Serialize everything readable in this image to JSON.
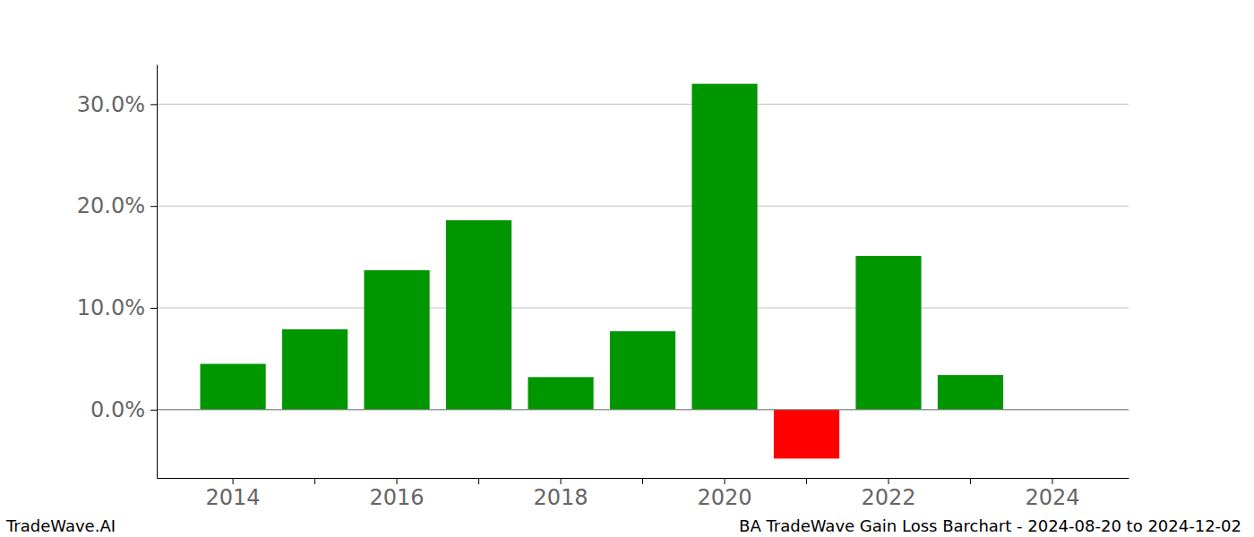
{
  "chart_data": {
    "type": "bar",
    "title": "BA TradeWave Gain Loss Barchart - 2024-08-20 to 2024-12-02",
    "annotations": [
      "TradeWave.AI"
    ],
    "categories": [
      "2014",
      null,
      "2016",
      null,
      "2018",
      null,
      "2020",
      null,
      "2022",
      null,
      "2024"
    ],
    "values": [
      4.5,
      7.9,
      13.7,
      18.6,
      3.2,
      7.7,
      32.0,
      -4.8,
      15.1,
      3.4,
      null
    ],
    "colors": [
      "#009600",
      "#009600",
      "#009600",
      "#009600",
      "#009600",
      "#009600",
      "#009600",
      "#ff0000",
      "#009600",
      "#009600",
      null
    ],
    "ylim": [
      -6.7,
      33.9
    ],
    "yticks": [
      {
        "value": 0,
        "label": "0.0%"
      },
      {
        "value": 10,
        "label": "10.0%"
      },
      {
        "value": 20,
        "label": "20.0%"
      },
      {
        "value": 30,
        "label": "30.0%"
      }
    ],
    "grid": true
  }
}
